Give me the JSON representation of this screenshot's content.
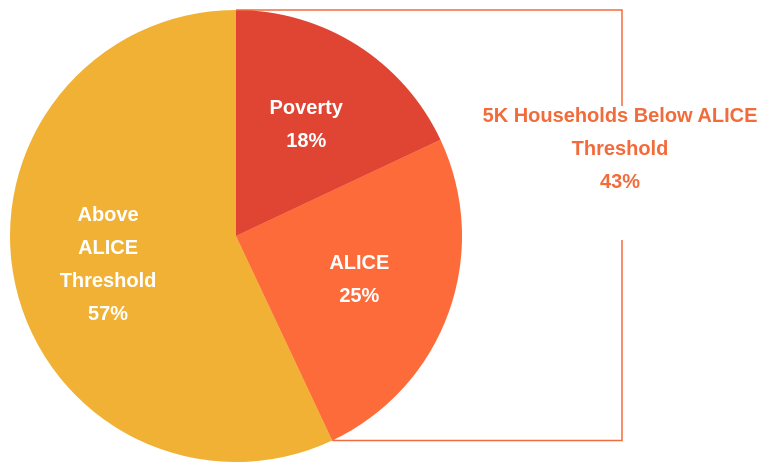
{
  "chart_data": {
    "type": "pie",
    "categories": [
      "Poverty",
      "ALICE",
      "Above ALICE Threshold"
    ],
    "values": [
      18,
      25,
      57
    ],
    "value_labels": [
      "18%",
      "25%",
      "57%"
    ],
    "colors": [
      "#e04433",
      "#fd6b3a",
      "#f0b134"
    ],
    "annotation": {
      "text": "5K Households Below ALICE Threshold",
      "value": 43,
      "label": "43%",
      "color": "#f26b3a"
    }
  }
}
